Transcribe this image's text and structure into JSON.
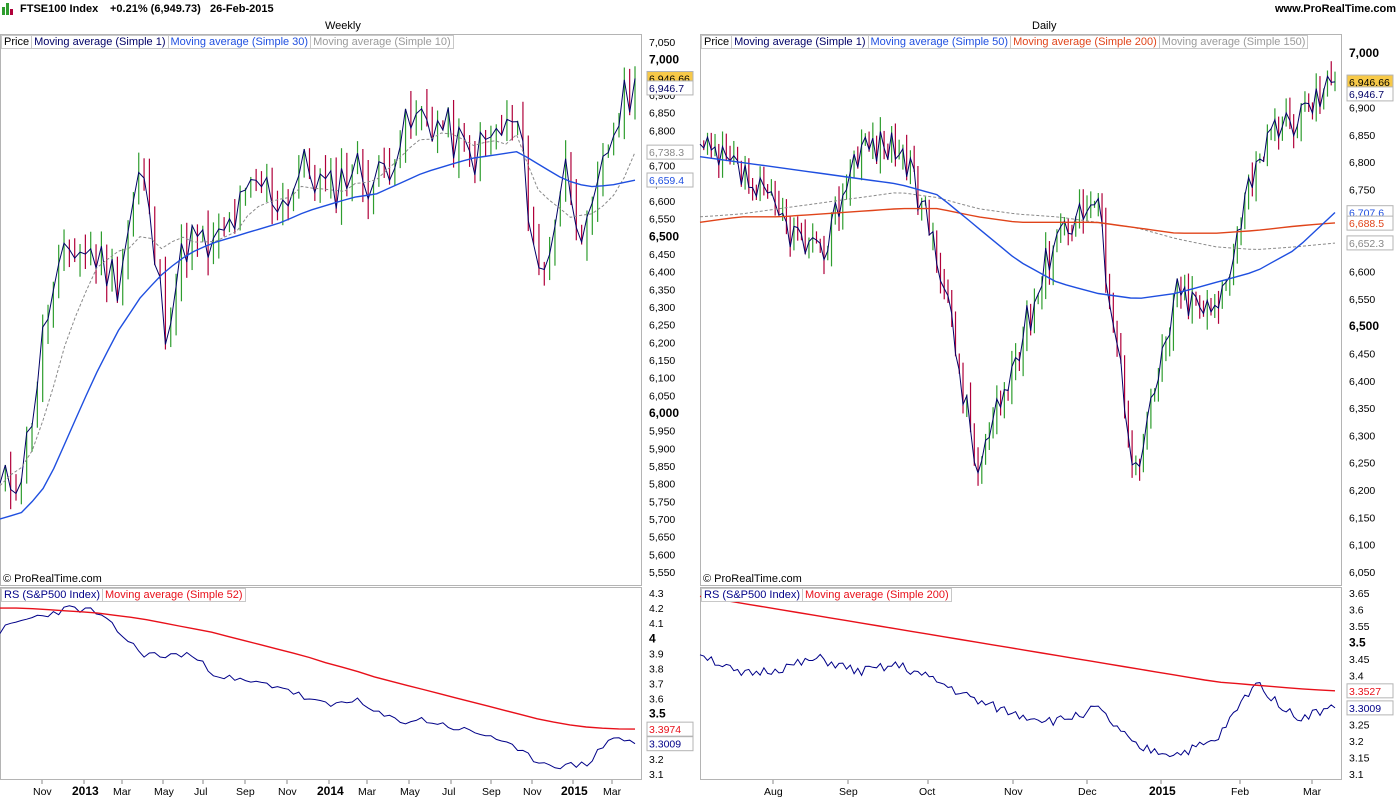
{
  "header": {
    "symbol": "FTSE100 Index",
    "change": "+0.21% (6,949.73)",
    "date": "26-Feb-2015",
    "site": "www.ProRealTime.com"
  },
  "copyright": "© ProRealTime.com",
  "colors": {
    "candle_up": "#2e9d2e",
    "candle_down": "#b0003a",
    "price_line": "#000066",
    "ma_blue": "#1f4fe0",
    "ma_gray": "#8a8a8a",
    "ma_orange": "#e0441a",
    "rs_line": "#000088",
    "rs_ma": "#e8101a",
    "last_price_bg": "#f7c948"
  },
  "weekly": {
    "title": "Weekly",
    "legend": [
      "Price",
      "Moving average (Simple 1)",
      "Moving average (Simple 30)",
      "Moving average (Simple 10)"
    ],
    "price_axis": [
      "7,050",
      "7,000",
      "6,950",
      "6,900",
      "6,850",
      "6,800",
      "6,750",
      "6,700",
      "6,650",
      "6,600",
      "6,550",
      "6,500",
      "6,450",
      "6,400",
      "6,350",
      "6,300",
      "6,250",
      "6,200",
      "6,150",
      "6,100",
      "6,050",
      "6,000",
      "5,950",
      "5,900",
      "5,850",
      "5,800",
      "5,750",
      "5,700",
      "5,650",
      "5,600",
      "5,550"
    ],
    "value_labels": [
      "6,946.66",
      "6,946.7",
      "6,738.3",
      "6,659.4"
    ],
    "x_axis": [
      "Nov",
      "2013",
      "Mar",
      "May",
      "Jul",
      "Sep",
      "Nov",
      "2014",
      "Mar",
      "May",
      "Jul",
      "Sep",
      "Nov",
      "2015",
      "Mar"
    ],
    "rs_legend": [
      "RS (S&P500 Index)",
      "Moving average (Simple 52)"
    ],
    "rs_axis": [
      "4.3",
      "4.2",
      "4.1",
      "4",
      "3.9",
      "3.8",
      "3.7",
      "3.6",
      "3.5",
      "3.4",
      "3.3",
      "3.2",
      "3.1"
    ],
    "rs_labels": [
      "3.3974",
      "3.3009"
    ]
  },
  "daily": {
    "title": "Daily",
    "legend": [
      "Price",
      "Moving average (Simple 1)",
      "Moving average (Simple 50)",
      "Moving average (Simple 200)",
      "Moving average (Simple 150)"
    ],
    "price_axis": [
      "7,000",
      "6,950",
      "6,900",
      "6,850",
      "6,800",
      "6,750",
      "6,700",
      "6,650",
      "6,600",
      "6,550",
      "6,500",
      "6,450",
      "6,400",
      "6,350",
      "6,300",
      "6,250",
      "6,200",
      "6,150",
      "6,100",
      "6,050"
    ],
    "value_labels": [
      "6,946.66",
      "6,946.7",
      "6,707.6",
      "6,688.5",
      "6,652.3"
    ],
    "x_axis": [
      "Aug",
      "Sep",
      "Oct",
      "Nov",
      "Dec",
      "2015",
      "Feb",
      "Mar"
    ],
    "rs_legend": [
      "RS (S&P500 Index)",
      "Moving average (Simple 200)"
    ],
    "rs_axis": [
      "3.65",
      "3.6",
      "3.55",
      "3.5",
      "3.45",
      "3.4",
      "3.35",
      "3.3",
      "3.25",
      "3.2",
      "3.15",
      "3.1"
    ],
    "rs_labels": [
      "3.3527",
      "3.3009"
    ]
  },
  "chart_data": [
    {
      "type": "line",
      "title": "Weekly",
      "ylim": [
        5550,
        7050
      ],
      "x": [
        "2012-11",
        "2012-12",
        "2013-01",
        "2013-02",
        "2013-03",
        "2013-04",
        "2013-05",
        "2013-06",
        "2013-07",
        "2013-08",
        "2013-09",
        "2013-10",
        "2013-11",
        "2013-12",
        "2014-01",
        "2014-02",
        "2014-03",
        "2014-04",
        "2014-05",
        "2014-06",
        "2014-07",
        "2014-08",
        "2014-09",
        "2014-10",
        "2014-11",
        "2014-12",
        "2015-01",
        "2015-02"
      ],
      "series": [
        {
          "name": "Moving average (Simple 1)",
          "values": [
            5780,
            5850,
            6280,
            6470,
            6450,
            6380,
            6700,
            6250,
            6500,
            6450,
            6550,
            6650,
            6600,
            6700,
            6620,
            6700,
            6650,
            6780,
            6840,
            6800,
            6720,
            6780,
            6820,
            6350,
            6700,
            6480,
            6790,
            6947
          ]
        },
        {
          "name": "Moving average (Simple 30)",
          "values": [
            5700,
            5720,
            5800,
            5950,
            6100,
            6230,
            6330,
            6400,
            6450,
            6480,
            6500,
            6520,
            6540,
            6570,
            6590,
            6610,
            6620,
            6650,
            6680,
            6700,
            6720,
            6730,
            6740,
            6700,
            6660,
            6640,
            6645,
            6659
          ]
        },
        {
          "name": "Moving average (Simple 10)",
          "values": [
            5800,
            5840,
            6000,
            6250,
            6400,
            6450,
            6500,
            6470,
            6500,
            6470,
            6520,
            6580,
            6600,
            6640,
            6630,
            6640,
            6650,
            6720,
            6780,
            6790,
            6760,
            6760,
            6780,
            6620,
            6560,
            6560,
            6600,
            6738
          ]
        }
      ]
    },
    {
      "type": "line",
      "title": "Daily",
      "ylim": [
        6050,
        7020
      ],
      "x": [
        "2014-07-01",
        "2014-07-15",
        "2014-08-01",
        "2014-08-15",
        "2014-09-01",
        "2014-09-15",
        "2014-10-01",
        "2014-10-15",
        "2014-11-01",
        "2014-11-15",
        "2014-12-01",
        "2014-12-15",
        "2015-01-01",
        "2015-01-15",
        "2015-02-01",
        "2015-02-15",
        "2015-02-26"
      ],
      "series": [
        {
          "name": "Moving average (Simple 1)",
          "values": [
            6820,
            6780,
            6700,
            6620,
            6830,
            6830,
            6640,
            6230,
            6450,
            6680,
            6730,
            6220,
            6560,
            6520,
            6810,
            6880,
            6947
          ]
        },
        {
          "name": "Moving average (Simple 50)",
          "values": [
            6810,
            6800,
            6790,
            6780,
            6770,
            6760,
            6740,
            6680,
            6620,
            6580,
            6560,
            6550,
            6560,
            6580,
            6600,
            6640,
            6708
          ]
        },
        {
          "name": "Moving average (Simple 200)",
          "values": [
            6690,
            6700,
            6700,
            6705,
            6710,
            6715,
            6715,
            6700,
            6690,
            6690,
            6690,
            6680,
            6670,
            6670,
            6675,
            6683,
            6689
          ]
        },
        {
          "name": "Moving average (Simple 150)",
          "values": [
            6700,
            6705,
            6715,
            6725,
            6735,
            6745,
            6735,
            6715,
            6705,
            6700,
            6690,
            6680,
            6660,
            6645,
            6640,
            6645,
            6652
          ]
        }
      ]
    },
    {
      "type": "line",
      "title": "RS (S&P500 Index) weekly",
      "ylim": [
        3.1,
        4.3
      ],
      "series": [
        {
          "name": "RS (S&P500 Index)",
          "values": [
            4.05,
            4.12,
            4.16,
            4.2,
            4.18,
            4.05,
            3.9,
            3.88,
            3.9,
            3.78,
            3.72,
            3.7,
            3.68,
            3.6,
            3.55,
            3.6,
            3.5,
            3.45,
            3.46,
            3.42,
            3.38,
            3.35,
            3.25,
            3.18,
            3.15,
            3.17,
            3.35,
            3.3009
          ]
        },
        {
          "name": "Moving average (Simple 52)",
          "values": [
            4.2,
            4.2,
            4.19,
            4.18,
            4.17,
            4.15,
            4.13,
            4.1,
            4.07,
            4.04,
            4.0,
            3.96,
            3.92,
            3.88,
            3.83,
            3.79,
            3.74,
            3.7,
            3.66,
            3.62,
            3.58,
            3.54,
            3.5,
            3.46,
            3.43,
            3.41,
            3.4,
            3.3974
          ]
        }
      ]
    },
    {
      "type": "line",
      "title": "RS (S&P500 Index) daily",
      "ylim": [
        3.1,
        3.65
      ],
      "series": [
        {
          "name": "RS (S&P500 Index)",
          "values": [
            3.47,
            3.4,
            3.42,
            3.45,
            3.41,
            3.43,
            3.38,
            3.32,
            3.28,
            3.26,
            3.3,
            3.18,
            3.16,
            3.2,
            3.38,
            3.27,
            3.3009
          ]
        },
        {
          "name": "Moving average (Simple 200)",
          "values": [
            3.64,
            3.62,
            3.6,
            3.58,
            3.56,
            3.54,
            3.52,
            3.5,
            3.48,
            3.46,
            3.44,
            3.42,
            3.4,
            3.38,
            3.37,
            3.36,
            3.3527
          ]
        }
      ]
    }
  ]
}
